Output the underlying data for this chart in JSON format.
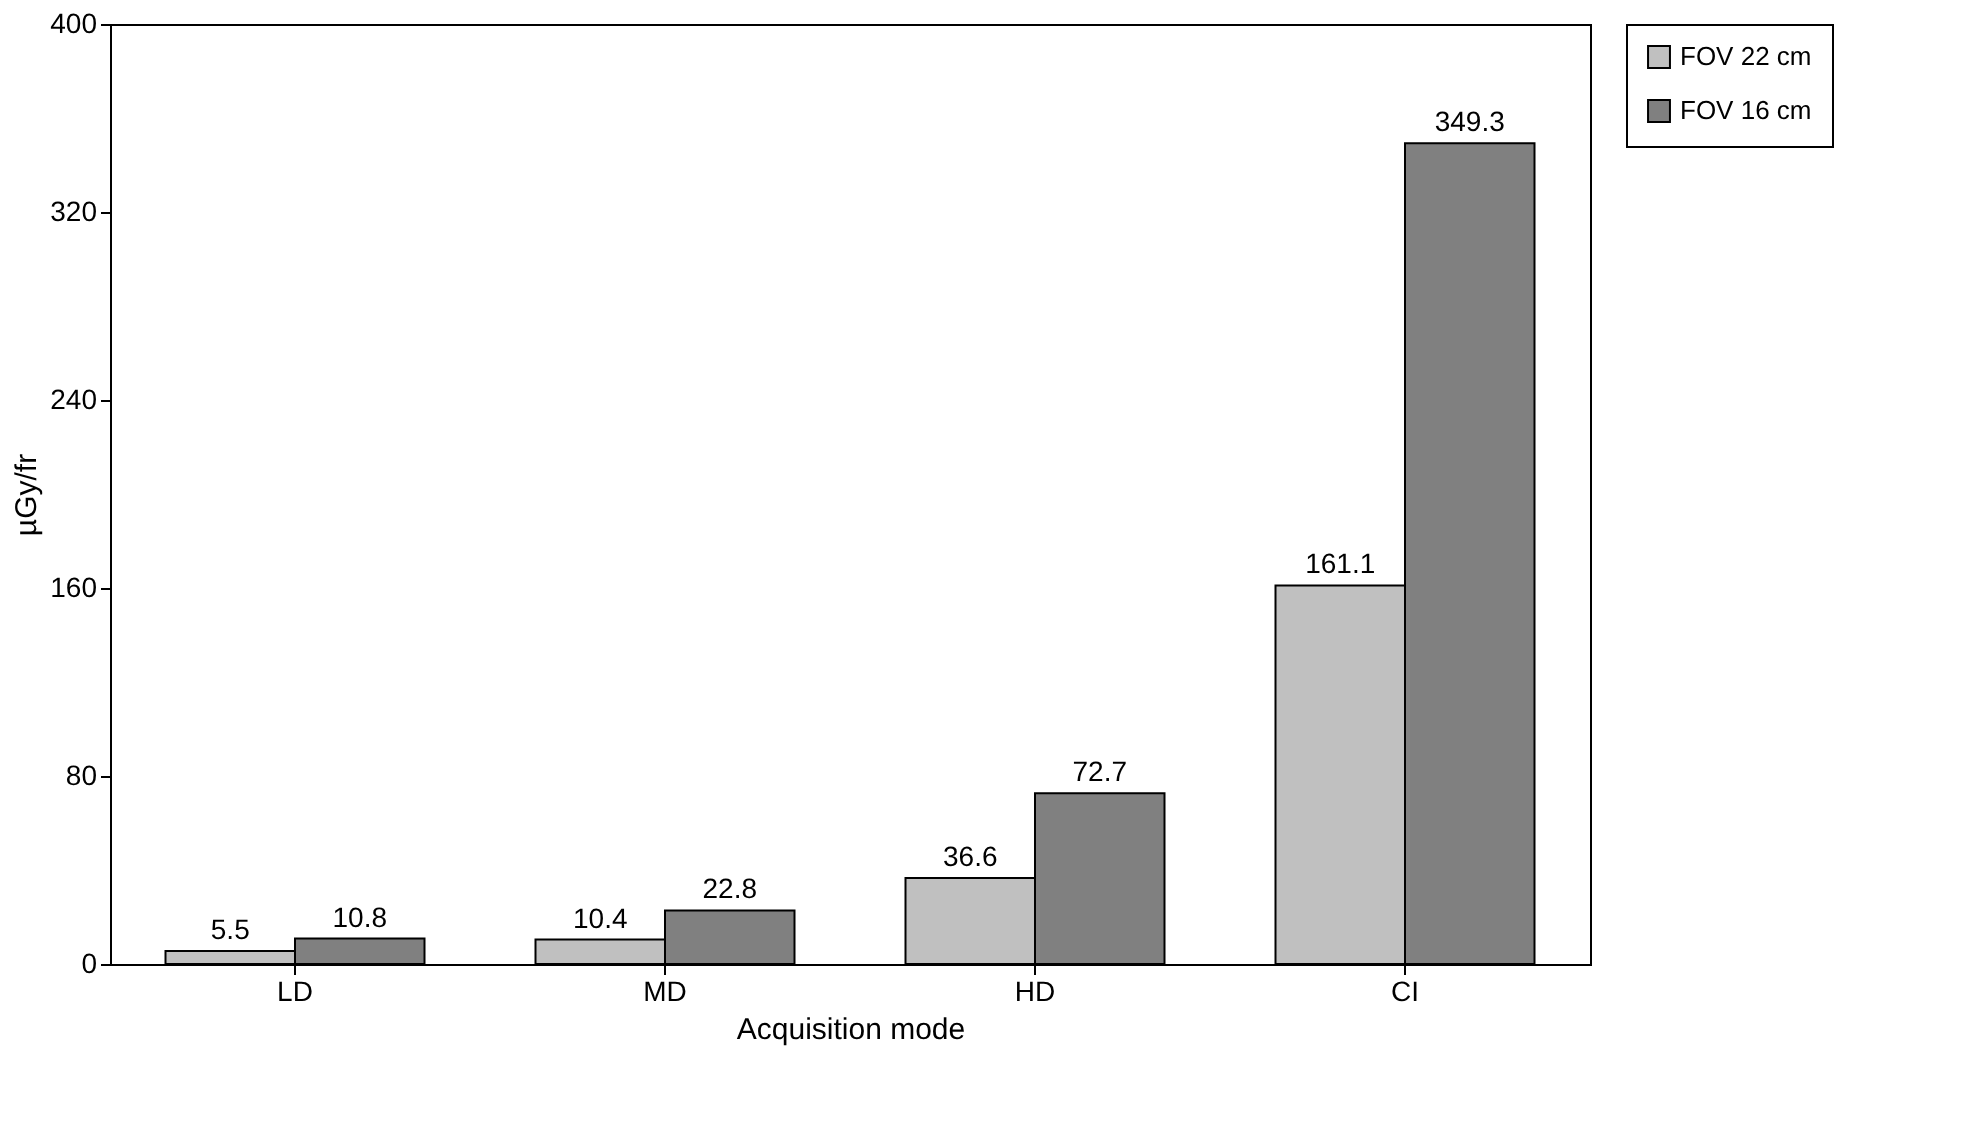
{
  "chart_data": {
    "type": "bar",
    "xlabel": "Acquisition mode",
    "ylabel": "µGy/fr",
    "categories": [
      "LD",
      "MD",
      "HD",
      "CI"
    ],
    "series": [
      {
        "name": "FOV 22 cm",
        "color": "#c0c0c0",
        "values": [
          5.5,
          10.4,
          36.6,
          161.1
        ]
      },
      {
        "name": "FOV 16 cm",
        "color": "#808080",
        "values": [
          10.8,
          22.8,
          72.7,
          349.3
        ]
      }
    ],
    "ylim": [
      0,
      400
    ],
    "yticks": [
      0,
      80,
      160,
      240,
      320,
      400
    ],
    "grid": false,
    "legend": "right",
    "data_labels": true
  }
}
